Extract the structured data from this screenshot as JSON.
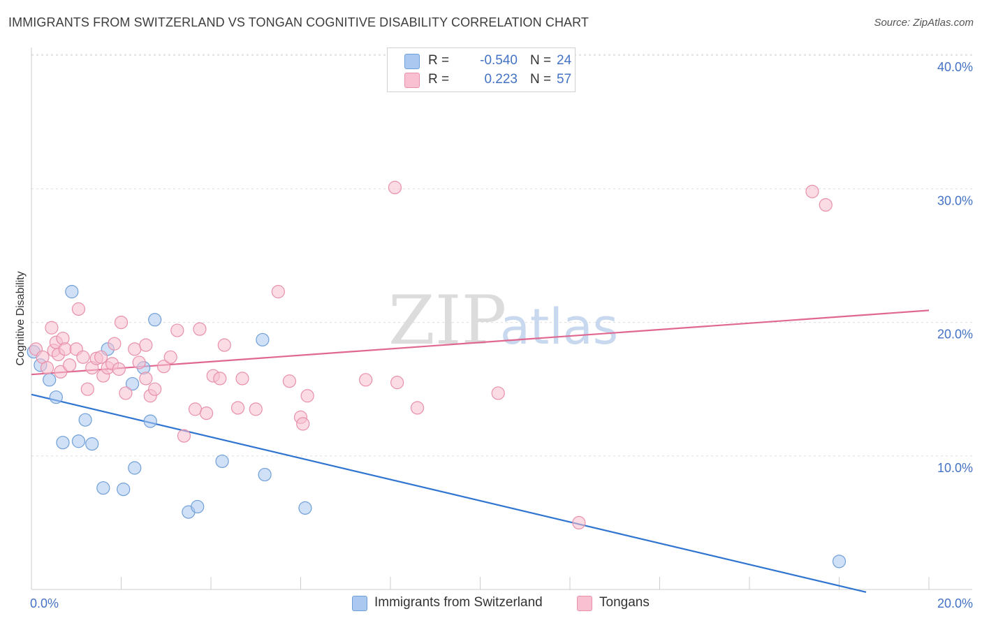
{
  "title": "IMMIGRANTS FROM SWITZERLAND VS TONGAN COGNITIVE DISABILITY CORRELATION CHART",
  "source": "Source: ZipAtlas.com",
  "watermark": {
    "zip": "ZIP",
    "atlas": "atlas"
  },
  "legend": {
    "r_label": "R =",
    "n_label": "N =",
    "rows": [
      {
        "r": "-0.540",
        "n": "24",
        "color": "#aac8f0",
        "border": "#6f9fd8"
      },
      {
        "r": "0.223",
        "n": "57",
        "color": "#f8c0d0",
        "border": "#e890aa"
      }
    ]
  },
  "bottom_legend": [
    {
      "label": "Immigrants from Switzerland",
      "color": "#aac8f0",
      "border": "#6f9fd8"
    },
    {
      "label": "Tongans",
      "color": "#f8c0d0",
      "border": "#e890aa"
    }
  ],
  "chart_data": {
    "type": "scatter",
    "title": "IMMIGRANTS FROM SWITZERLAND VS TONGAN COGNITIVE DISABILITY CORRELATION CHART",
    "xlabel": "",
    "ylabel": "Cognitive Disability",
    "xlim": [
      0,
      20
    ],
    "ylim": [
      0,
      40
    ],
    "x_tick_labels": [
      "0.0%",
      "20.0%"
    ],
    "y_tick_labels": [
      "10.0%",
      "20.0%",
      "30.0%",
      "40.0%"
    ],
    "y_ticks": [
      10,
      20,
      30,
      40
    ],
    "grid": true,
    "legend_position": "top-center",
    "series": [
      {
        "name": "Immigrants from Switzerland",
        "color": "#6f9fd8",
        "fill": "#aac8f0",
        "line_color": "#2f74d0",
        "trend": [
          [
            0,
            14.6
          ],
          [
            18.6,
            -0.2
          ]
        ],
        "points": [
          [
            0.05,
            17.8
          ],
          [
            0.2,
            16.8
          ],
          [
            0.4,
            15.7
          ],
          [
            0.55,
            14.4
          ],
          [
            0.7,
            11.0
          ],
          [
            0.9,
            22.3
          ],
          [
            1.05,
            11.1
          ],
          [
            1.2,
            12.7
          ],
          [
            1.35,
            10.9
          ],
          [
            1.6,
            7.6
          ],
          [
            1.7,
            18.0
          ],
          [
            2.05,
            7.5
          ],
          [
            2.25,
            15.4
          ],
          [
            2.3,
            9.1
          ],
          [
            2.5,
            16.6
          ],
          [
            2.65,
            12.6
          ],
          [
            2.75,
            20.2
          ],
          [
            3.5,
            5.8
          ],
          [
            3.7,
            6.2
          ],
          [
            4.25,
            9.6
          ],
          [
            5.15,
            18.7
          ],
          [
            5.2,
            8.6
          ],
          [
            6.1,
            6.1
          ],
          [
            18.0,
            2.1
          ]
        ]
      },
      {
        "name": "Tongans",
        "color": "#e890aa",
        "fill": "#f8c0d0",
        "line_color": "#e06890",
        "trend": [
          [
            0,
            16.1
          ],
          [
            20,
            20.9
          ]
        ],
        "points": [
          [
            0.1,
            18.0
          ],
          [
            0.25,
            17.4
          ],
          [
            0.35,
            16.6
          ],
          [
            0.45,
            19.6
          ],
          [
            0.5,
            17.9
          ],
          [
            0.55,
            18.5
          ],
          [
            0.6,
            17.6
          ],
          [
            0.65,
            16.3
          ],
          [
            0.7,
            18.8
          ],
          [
            0.75,
            18.0
          ],
          [
            0.85,
            16.8
          ],
          [
            1.0,
            18.0
          ],
          [
            1.05,
            21.0
          ],
          [
            1.15,
            17.4
          ],
          [
            1.25,
            15.0
          ],
          [
            1.35,
            16.6
          ],
          [
            1.45,
            17.3
          ],
          [
            1.55,
            17.4
          ],
          [
            1.6,
            16.0
          ],
          [
            1.7,
            16.6
          ],
          [
            1.8,
            16.9
          ],
          [
            1.85,
            18.4
          ],
          [
            1.95,
            16.5
          ],
          [
            2.0,
            20.0
          ],
          [
            2.1,
            14.7
          ],
          [
            2.3,
            18.0
          ],
          [
            2.4,
            17.0
          ],
          [
            2.55,
            18.3
          ],
          [
            2.55,
            15.8
          ],
          [
            2.65,
            14.5
          ],
          [
            2.75,
            15.0
          ],
          [
            2.95,
            16.7
          ],
          [
            3.1,
            17.4
          ],
          [
            3.25,
            19.4
          ],
          [
            3.4,
            11.5
          ],
          [
            3.65,
            13.5
          ],
          [
            3.75,
            19.5
          ],
          [
            3.9,
            13.2
          ],
          [
            4.05,
            16.0
          ],
          [
            4.2,
            15.8
          ],
          [
            4.3,
            18.3
          ],
          [
            4.6,
            13.6
          ],
          [
            4.7,
            15.8
          ],
          [
            5.0,
            13.5
          ],
          [
            5.5,
            22.3
          ],
          [
            5.75,
            15.6
          ],
          [
            6.0,
            12.9
          ],
          [
            6.05,
            12.4
          ],
          [
            6.15,
            14.5
          ],
          [
            7.45,
            15.7
          ],
          [
            8.1,
            30.1
          ],
          [
            8.15,
            15.5
          ],
          [
            8.6,
            13.6
          ],
          [
            10.4,
            14.7
          ],
          [
            12.2,
            5.0
          ],
          [
            17.4,
            29.8
          ],
          [
            17.7,
            28.8
          ]
        ]
      }
    ]
  }
}
